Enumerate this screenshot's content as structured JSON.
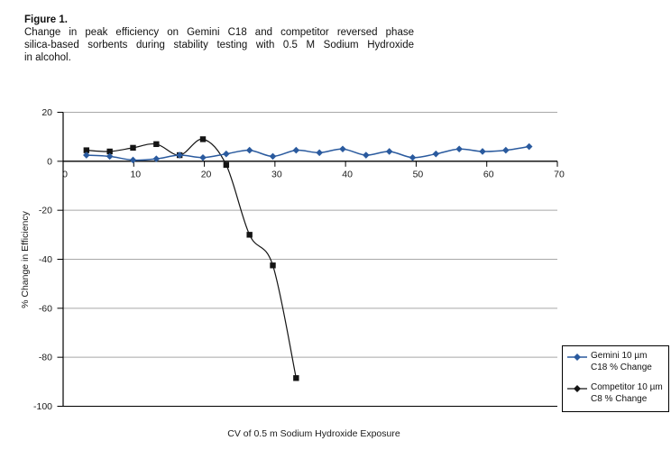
{
  "figure": {
    "label": "Figure 1.",
    "caption_lines": [
      "Change in peak efficiency on Gemini C18 and competitor reversed phase",
      "silica-based sorbents during stability testing with 0.5 M Sodium Hydroxide",
      "in alcohol."
    ]
  },
  "chart_data": {
    "type": "line",
    "title": "Figure 1. Change in peak efficiency on Gemini C18 and competitor reversed phase silica-based sorbents during stability testing with 0.5 M Sodium Hydroxide in alcohol.",
    "xlabel": "CV of 0.5 m Sodium Hydroxide Exposure",
    "ylabel": "% Change in Efficiency",
    "xlim": [
      0,
      70
    ],
    "ylim": [
      -100,
      20
    ],
    "x_ticks": [
      0,
      10,
      20,
      30,
      40,
      50,
      60,
      70
    ],
    "y_ticks": [
      20,
      0,
      -20,
      -40,
      -60,
      -80,
      -100
    ],
    "grid": "horizontal",
    "line_style": "smoothed",
    "legend_position": "outside-bottom-right",
    "colors": {
      "axis": "#000000",
      "gridline": "#a8a8a8",
      "tick_text": "#1a1a1a"
    },
    "series": [
      {
        "name": "Gemini 10 µm C18 % Change",
        "legend_lines": [
          "Gemini 10 µm",
          "C18 % Change"
        ],
        "color": "#2a5a9e",
        "marker": "diamond",
        "x": [
          3.3,
          6.6,
          9.9,
          13.2,
          16.5,
          19.8,
          23.1,
          26.4,
          29.7,
          33,
          36.3,
          39.6,
          42.9,
          46.2,
          49.5,
          52.8,
          56.1,
          59.4,
          62.7,
          66
        ],
        "y": [
          2.5,
          2,
          0.5,
          1,
          2.5,
          1.5,
          3,
          4.5,
          2,
          4.5,
          3.5,
          5,
          2.5,
          4,
          1.5,
          3,
          5,
          4,
          4.5,
          6
        ]
      },
      {
        "name": "Competitor 10 µm C8 % Change",
        "legend_lines": [
          "Competitor 10 µm",
          "C8 % Change"
        ],
        "color": "#141414",
        "marker": "square",
        "x": [
          3.3,
          6.6,
          9.9,
          13.2,
          16.5,
          19.8,
          23.1,
          26.4,
          29.7,
          33
        ],
        "y": [
          4.5,
          4,
          5.5,
          7,
          2.5,
          9,
          -1.5,
          -30,
          -42.5,
          -88.5
        ]
      }
    ]
  }
}
